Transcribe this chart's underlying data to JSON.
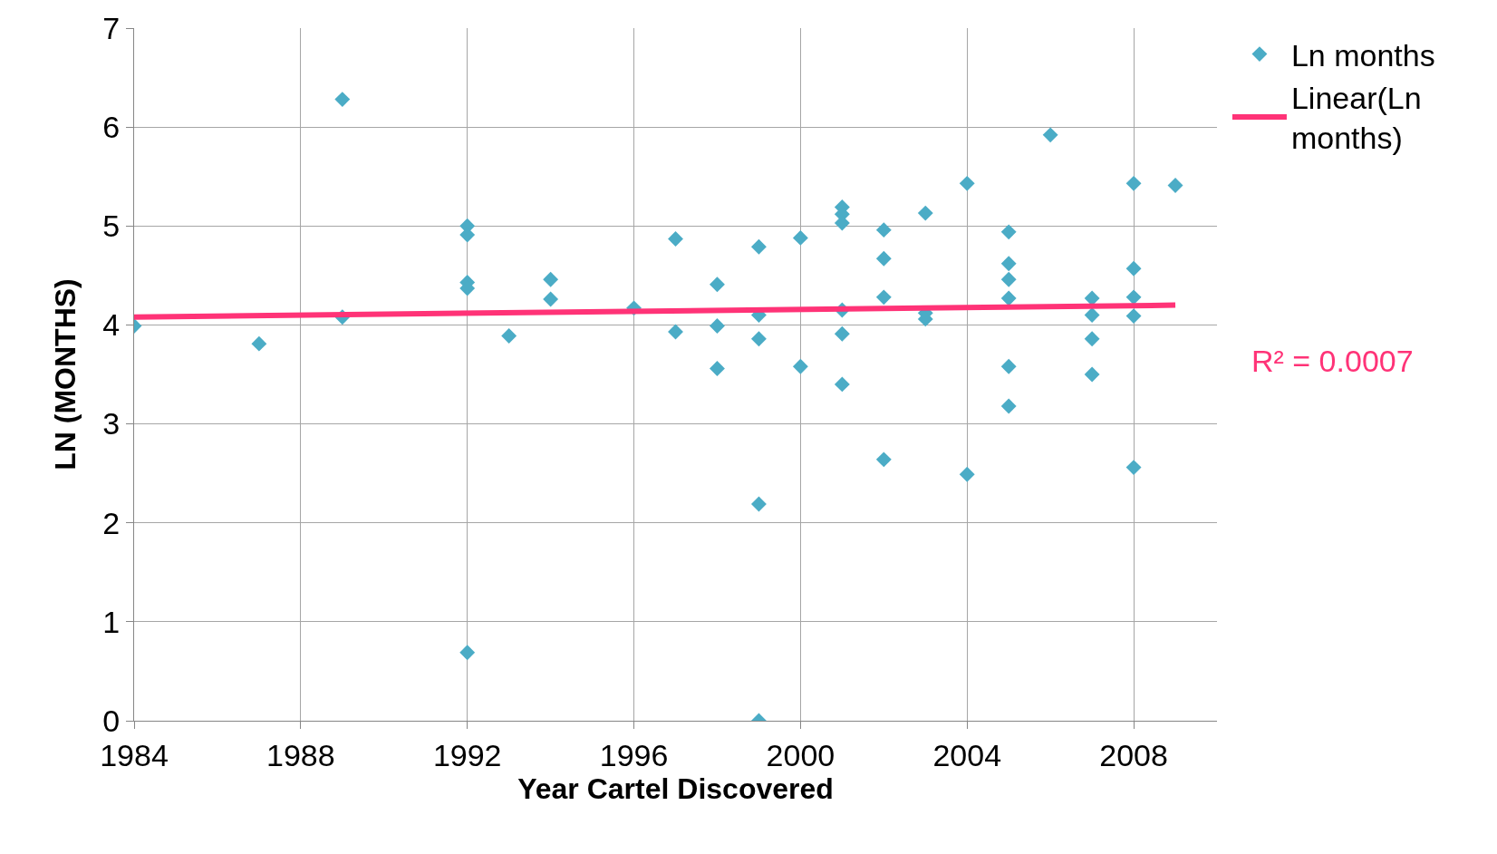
{
  "chart_data": {
    "type": "scatter",
    "xlabel": "Year Cartel Discovered",
    "ylabel": "LN (MONTHS)",
    "xlim": [
      1984,
      2010
    ],
    "xticks": [
      1984,
      1988,
      1992,
      1996,
      2000,
      2004,
      2008
    ],
    "ylim": [
      0,
      7
    ],
    "yticks": [
      0,
      1,
      2,
      3,
      4,
      5,
      6,
      7
    ],
    "grid": true,
    "legend": "top right",
    "series": [
      {
        "name": "Ln months",
        "marker": "diamond",
        "color": "#4bacc6",
        "x": [
          1984,
          1987,
          1989,
          1989,
          1992,
          1992,
          1992,
          1992,
          1992,
          1993,
          1994,
          1994,
          1996,
          1997,
          1997,
          1998,
          1998,
          1998,
          1999,
          1999,
          1999,
          1999,
          1999,
          2000,
          2000,
          2001,
          2001,
          2001,
          2001,
          2001,
          2001,
          2002,
          2002,
          2002,
          2002,
          2003,
          2003,
          2003,
          2004,
          2004,
          2005,
          2005,
          2005,
          2005,
          2005,
          2005,
          2006,
          2007,
          2007,
          2007,
          2007,
          2008,
          2008,
          2008,
          2008,
          2008,
          2009
        ],
        "values": [
          3.99,
          3.81,
          6.28,
          4.08,
          5.0,
          4.91,
          4.43,
          4.37,
          0.69,
          3.89,
          4.46,
          4.26,
          4.17,
          4.87,
          3.93,
          4.41,
          3.99,
          3.56,
          4.79,
          4.1,
          3.86,
          2.19,
          0,
          4.88,
          3.58,
          5.19,
          5.12,
          5.03,
          4.15,
          3.91,
          3.4,
          4.96,
          4.67,
          4.28,
          2.64,
          5.13,
          4.12,
          4.06,
          5.43,
          2.49,
          4.94,
          4.62,
          4.46,
          4.27,
          3.58,
          3.18,
          5.92,
          4.27,
          4.1,
          3.86,
          3.5,
          5.43,
          4.57,
          4.28,
          4.09,
          2.56,
          5.41
        ]
      },
      {
        "name": "Linear(Ln months)",
        "type": "line",
        "color": "#ff3377",
        "x": [
          1984,
          2009
        ],
        "values": [
          4.08,
          4.2
        ]
      }
    ],
    "annotations": [
      "R² = 0.0007"
    ]
  }
}
